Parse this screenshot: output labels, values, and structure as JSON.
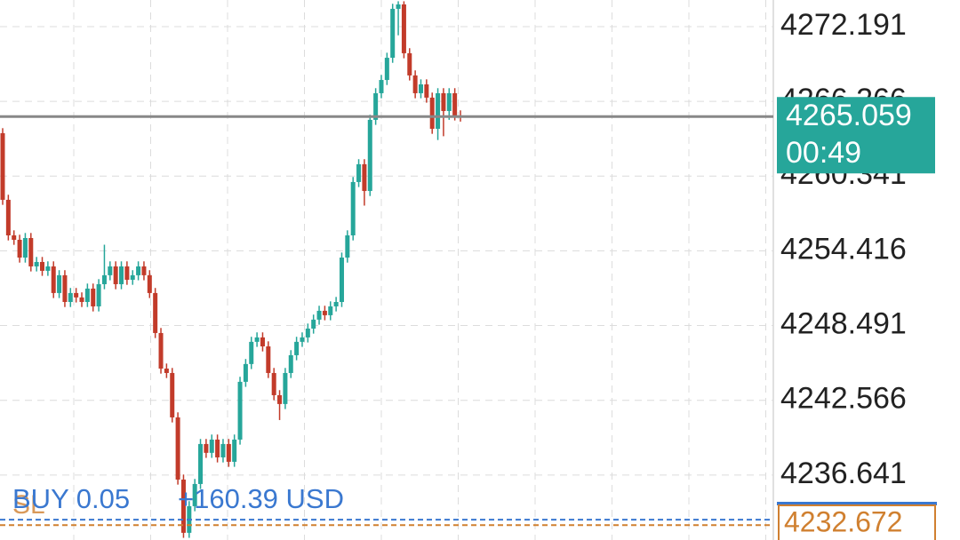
{
  "chart_data": {
    "type": "candlestick",
    "open": [
      4263.74,
      4258.46,
      4255.64,
      4255.29,
      4253.88,
      4255.43,
      4253.18,
      4253.53,
      4252.83,
      4253.18,
      4251.07,
      4252.48,
      4250.36,
      4251.07,
      4250.72,
      4250.36,
      4251.42,
      4250.01,
      4251.77,
      4252.48,
      4253.18,
      4251.77,
      4253.18,
      4252.12,
      4252.48,
      4253.18,
      4252.48,
      4251.07,
      4247.9,
      4245.08,
      4244.73,
      4241.21,
      4236.28,
      4232.06,
      4234.17,
      4235.93,
      4239.1,
      4238.4,
      4239.45,
      4238.04,
      4239.1,
      4237.69,
      4239.45,
      4244.03,
      4245.44,
      4247.2,
      4247.55,
      4246.84,
      4244.73,
      4242.97,
      4242.27,
      4244.73,
      4246.14,
      4247.2,
      4247.55,
      4248.25,
      4248.96,
      4249.66,
      4249.31,
      4250.01,
      4250.36,
      4253.88,
      4255.64,
      4259.87,
      4261.28,
      4259.16,
      4264.8,
      4266.91,
      4267.96,
      4269.72,
      4273.6,
      4273.95,
      4270.08,
      4268.32,
      4266.91,
      4267.61,
      4266.56,
      4264.09,
      4266.91,
      4265.5,
      4266.91,
      4265.15
    ],
    "high": [
      4264.14,
      4258.86,
      4256.04,
      4255.69,
      4255.83,
      4255.83,
      4253.93,
      4253.93,
      4253.58,
      4253.58,
      4252.88,
      4252.88,
      4251.47,
      4251.47,
      4251.12,
      4251.82,
      4251.82,
      4252.17,
      4254.9,
      4253.58,
      4253.58,
      4253.58,
      4253.58,
      4252.88,
      4253.58,
      4253.58,
      4252.88,
      4251.47,
      4248.3,
      4245.48,
      4245.13,
      4241.61,
      4236.68,
      4234.57,
      4236.33,
      4239.5,
      4239.5,
      4239.85,
      4239.85,
      4239.5,
      4239.5,
      4239.85,
      4244.43,
      4245.84,
      4247.6,
      4247.95,
      4247.95,
      4247.24,
      4245.13,
      4243.37,
      4245.13,
      4246.54,
      4247.6,
      4247.95,
      4248.65,
      4249.36,
      4250.06,
      4250.06,
      4250.41,
      4250.76,
      4254.28,
      4256.04,
      4260.27,
      4261.68,
      4261.68,
      4265.2,
      4267.31,
      4268.36,
      4270.12,
      4274.0,
      4274.2,
      4274.2,
      4270.48,
      4268.72,
      4268.01,
      4268.01,
      4266.96,
      4267.31,
      4267.31,
      4267.31,
      4267.31,
      4265.55
    ],
    "low": [
      4258.06,
      4255.24,
      4254.89,
      4253.48,
      4253.48,
      4252.78,
      4252.78,
      4252.43,
      4252.43,
      4250.67,
      4250.67,
      4249.96,
      4249.96,
      4250.32,
      4249.96,
      4249.96,
      4249.61,
      4249.61,
      4251.37,
      4252.08,
      4251.37,
      4251.37,
      4251.72,
      4251.72,
      4252.08,
      4252.08,
      4250.67,
      4247.5,
      4244.68,
      4244.33,
      4240.81,
      4235.88,
      4231.66,
      4231.66,
      4233.77,
      4235.53,
      4238.0,
      4238.0,
      4237.64,
      4237.64,
      4237.29,
      4237.29,
      4239.05,
      4243.63,
      4245.04,
      4246.8,
      4246.44,
      4244.33,
      4242.57,
      4241.0,
      4241.87,
      4244.33,
      4245.74,
      4246.8,
      4247.15,
      4247.85,
      4248.56,
      4248.91,
      4248.91,
      4249.61,
      4249.96,
      4253.48,
      4255.24,
      4259.47,
      4258.0,
      4258.76,
      4264.4,
      4266.51,
      4267.56,
      4269.32,
      4271.5,
      4269.68,
      4267.92,
      4266.51,
      4266.51,
      4266.16,
      4263.69,
      4263.2,
      4263.5,
      4264.8,
      4264.75,
      4264.66
    ],
    "close": [
      4258.46,
      4255.64,
      4255.29,
      4253.88,
      4255.43,
      4253.18,
      4253.53,
      4252.83,
      4253.18,
      4251.07,
      4252.48,
      4250.36,
      4251.07,
      4250.72,
      4250.36,
      4251.42,
      4250.01,
      4251.77,
      4252.48,
      4253.18,
      4251.77,
      4253.18,
      4252.12,
      4252.48,
      4253.18,
      4252.48,
      4251.07,
      4247.9,
      4245.08,
      4244.73,
      4241.21,
      4236.28,
      4232.06,
      4234.17,
      4235.93,
      4239.1,
      4238.4,
      4239.45,
      4238.04,
      4239.1,
      4237.69,
      4239.45,
      4244.03,
      4245.44,
      4247.2,
      4247.55,
      4246.84,
      4244.73,
      4242.97,
      4242.27,
      4244.73,
      4246.14,
      4247.2,
      4247.55,
      4248.25,
      4248.96,
      4249.66,
      4249.31,
      4250.01,
      4250.36,
      4253.88,
      4255.64,
      4259.87,
      4261.28,
      4259.16,
      4264.8,
      4266.91,
      4267.96,
      4269.72,
      4273.6,
      4273.95,
      4270.08,
      4268.32,
      4266.91,
      4267.61,
      4266.56,
      4264.09,
      4266.91,
      4265.5,
      4266.91,
      4265.15,
      4265.059
    ],
    "up_color": "#26a69a",
    "down_color": "#c23b2a",
    "ylim": [
      4231.49,
      4274.3
    ],
    "yticks": [
      4236.641,
      4242.566,
      4248.491,
      4254.416,
      4260.341,
      4266.266,
      4272.191
    ],
    "grid": true,
    "current_price": 4265.059,
    "timer": "00:49",
    "position": {
      "label": "BUY 0.05",
      "profit": "+160.39 USD",
      "price": 4233.1
    },
    "stop_loss": {
      "label": "SL",
      "price": 4232.672
    }
  }
}
